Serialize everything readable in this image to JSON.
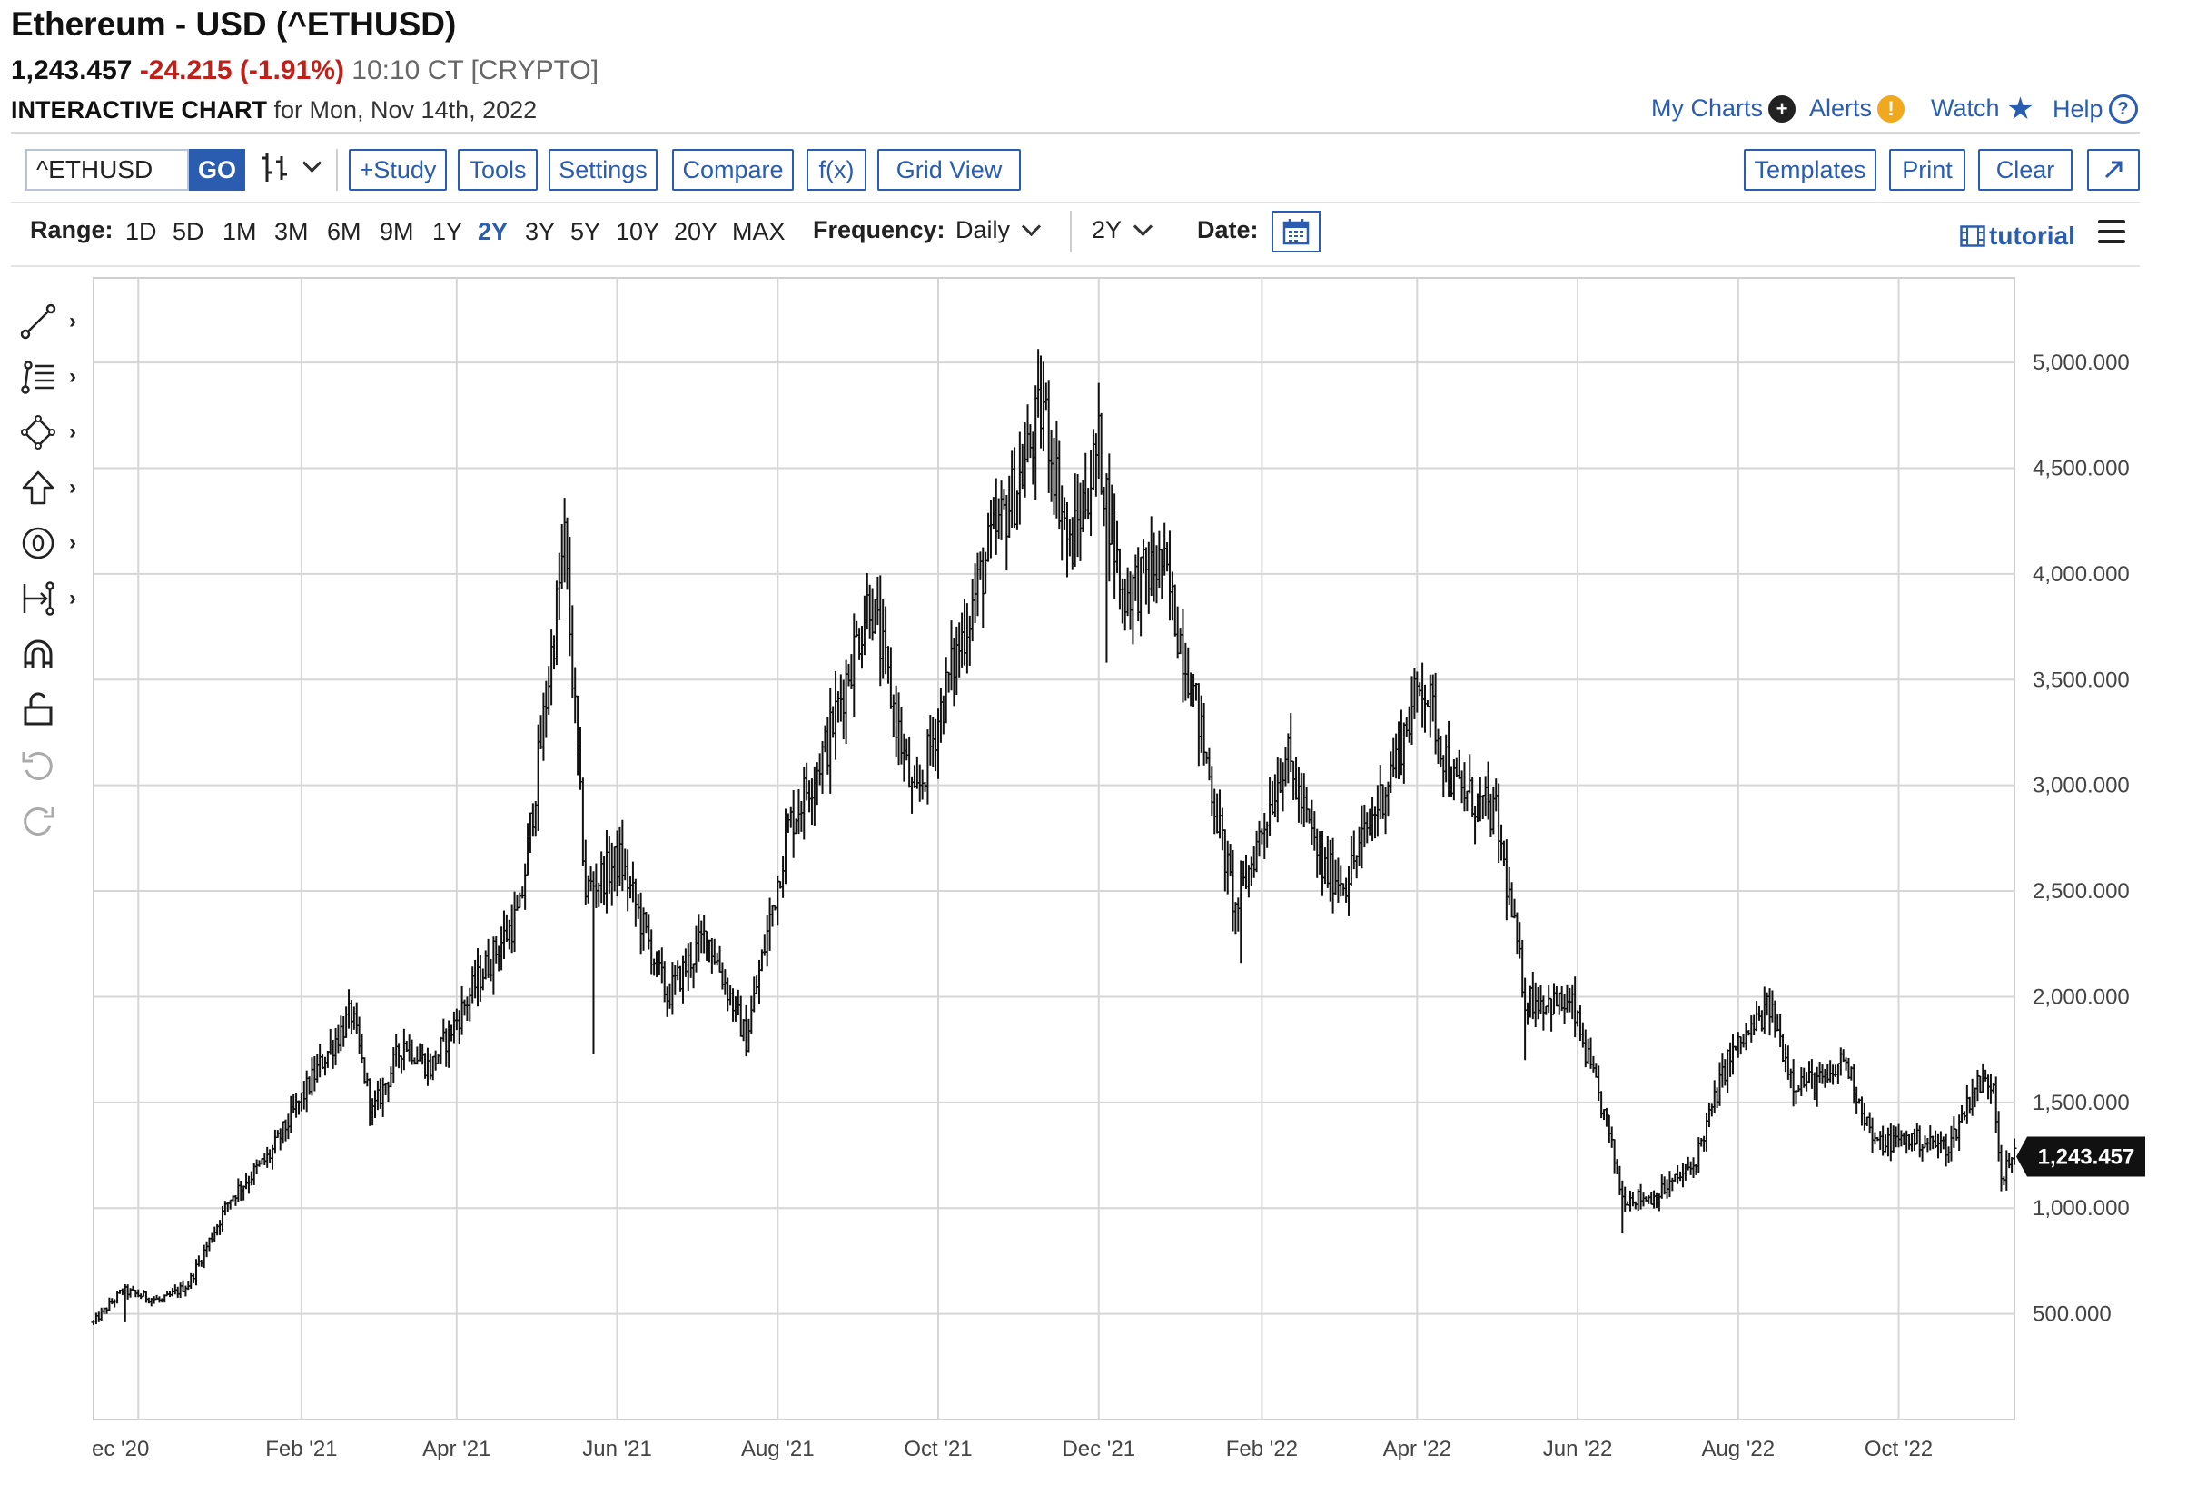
{
  "header": {
    "title": "Ethereum - USD (^ETHUSD)",
    "price": "1,243.457",
    "change": "-24.215 (-1.91%)",
    "quote_time": "10:10 CT [CRYPTO]",
    "subtitle_bold": "INTERACTIVE CHART",
    "subtitle_rest": " for Mon, Nov 14th, 2022",
    "links": [
      {
        "label": "My Charts",
        "icon": "plus-circle-icon",
        "color": "#222222"
      },
      {
        "label": "Alerts",
        "icon": "exclamation-circle-icon",
        "color": "#f0a81e"
      },
      {
        "label": "Watch",
        "icon": "star-icon",
        "color": "#2a5db0"
      },
      {
        "label": "Help",
        "icon": "question-circle-icon",
        "color": "#2a5db0"
      }
    ]
  },
  "toolbar": {
    "symbol_value": "^ETHUSD",
    "go_label": "GO",
    "bar_style_icon": "ohlc-bars-icon",
    "buttons_left": [
      "+Study",
      "Tools",
      "Settings",
      "Compare",
      "f(x)",
      "Grid View"
    ],
    "buttons_right": [
      "Templates",
      "Print",
      "Clear"
    ],
    "expand_icon": "expand-arrow-icon"
  },
  "range": {
    "label": "Range:",
    "items": [
      "1D",
      "5D",
      "1M",
      "3M",
      "6M",
      "9M",
      "1Y",
      "2Y",
      "3Y",
      "5Y",
      "10Y",
      "20Y",
      "MAX"
    ],
    "active": "2Y",
    "frequency_label": "Frequency:",
    "frequency_value": "Daily",
    "period_value": "2Y",
    "date_label": "Date:",
    "tutorial_label": "tutorial"
  },
  "tools": [
    "trendline-icon",
    "fibonacci-icon",
    "shapes-icon",
    "arrow-icon",
    "text-annotation-icon",
    "measure-icon",
    "magnet-icon",
    "lock-icon",
    "undo-icon",
    "redo-icon"
  ],
  "chart_data": {
    "type": "ohlc",
    "title": "Ethereum - USD (^ETHUSD)",
    "frequency": "Daily",
    "y_axis": {
      "ticks": [
        "500.000",
        "1,000.000",
        "1,500.000",
        "2,000.000",
        "2,500.000",
        "3,000.000",
        "3,500.000",
        "4,000.000",
        "4,500.000",
        "5,000.000"
      ],
      "tick_values": [
        500,
        1000,
        1500,
        2000,
        2500,
        3000,
        3500,
        4000,
        4500,
        5000
      ],
      "position": "right",
      "range": [
        0,
        5400
      ]
    },
    "x_axis": {
      "ticks": [
        "ec '20",
        "Feb '21",
        "Apr '21",
        "Jun '21",
        "Aug '21",
        "Oct '21",
        "Dec '21",
        "Feb '22",
        "Apr '22",
        "Jun '22",
        "Aug '22",
        "Oct '22"
      ],
      "tick_dates": [
        "2020-12-01",
        "2021-02-01",
        "2021-04-01",
        "2021-06-01",
        "2021-08-01",
        "2021-10-01",
        "2021-12-01",
        "2022-02-01",
        "2022-04-01",
        "2022-06-01",
        "2022-08-01",
        "2022-10-01"
      ],
      "range": [
        "2020-11-14",
        "2022-11-14"
      ]
    },
    "grid": true,
    "last_price_label": "1,243.457",
    "last_price": 1243.457,
    "price_path": [
      [
        "2020-11-14",
        460
      ],
      [
        "2020-11-25",
        610
      ],
      [
        "2020-12-10",
        560
      ],
      [
        "2020-12-20",
        640
      ],
      [
        "2021-01-05",
        1050
      ],
      [
        "2021-01-20",
        1250
      ],
      [
        "2021-02-10",
        1720
      ],
      [
        "2021-02-20",
        1920
      ],
      [
        "2021-02-28",
        1450
      ],
      [
        "2021-03-12",
        1790
      ],
      [
        "2021-03-22",
        1660
      ],
      [
        "2021-04-10",
        2100
      ],
      [
        "2021-04-25",
        2400
      ],
      [
        "2021-05-03",
        3200
      ],
      [
        "2021-05-12",
        4150
      ],
      [
        "2021-05-20",
        2500
      ],
      [
        "2021-06-02",
        2650
      ],
      [
        "2021-06-20",
        2000
      ],
      [
        "2021-07-05",
        2300
      ],
      [
        "2021-07-20",
        1800
      ],
      [
        "2021-08-05",
        2800
      ],
      [
        "2021-08-20",
        3200
      ],
      [
        "2021-09-05",
        3900
      ],
      [
        "2021-09-22",
        2900
      ],
      [
        "2021-10-05",
        3500
      ],
      [
        "2021-10-20",
        4100
      ],
      [
        "2021-11-01",
        4450
      ],
      [
        "2021-11-10",
        4800
      ],
      [
        "2021-11-20",
        4100
      ],
      [
        "2021-12-01",
        4600
      ],
      [
        "2021-12-10",
        3900
      ],
      [
        "2021-12-25",
        4050
      ],
      [
        "2022-01-05",
        3500
      ],
      [
        "2022-01-22",
        2400
      ],
      [
        "2022-02-10",
        3150
      ],
      [
        "2022-02-24",
        2600
      ],
      [
        "2022-03-05",
        2550
      ],
      [
        "2022-03-20",
        3000
      ],
      [
        "2022-04-03",
        3500
      ],
      [
        "2022-04-15",
        3000
      ],
      [
        "2022-05-01",
        2850
      ],
      [
        "2022-05-12",
        2000
      ],
      [
        "2022-05-30",
        1950
      ],
      [
        "2022-06-12",
        1400
      ],
      [
        "2022-06-18",
        1050
      ],
      [
        "2022-06-30",
        1050
      ],
      [
        "2022-07-15",
        1200
      ],
      [
        "2022-07-28",
        1700
      ],
      [
        "2022-08-13",
        1950
      ],
      [
        "2022-08-22",
        1600
      ],
      [
        "2022-09-05",
        1600
      ],
      [
        "2022-09-10",
        1720
      ],
      [
        "2022-09-22",
        1300
      ],
      [
        "2022-10-05",
        1330
      ],
      [
        "2022-10-20",
        1290
      ],
      [
        "2022-10-30",
        1580
      ],
      [
        "2022-11-06",
        1600
      ],
      [
        "2022-11-09",
        1150
      ],
      [
        "2022-11-14",
        1243
      ]
    ],
    "extremes": [
      [
        "2020-11-26",
        460
      ],
      [
        "2021-05-12",
        4360
      ],
      [
        "2021-05-23",
        1730
      ],
      [
        "2021-07-20",
        1718
      ],
      [
        "2021-11-10",
        4890
      ],
      [
        "2021-12-04",
        3580
      ],
      [
        "2022-01-24",
        2160
      ],
      [
        "2022-04-03",
        3580
      ],
      [
        "2022-05-12",
        1700
      ],
      [
        "2022-06-18",
        880
      ],
      [
        "2022-08-14",
        2030
      ],
      [
        "2022-11-09",
        1080
      ]
    ]
  }
}
